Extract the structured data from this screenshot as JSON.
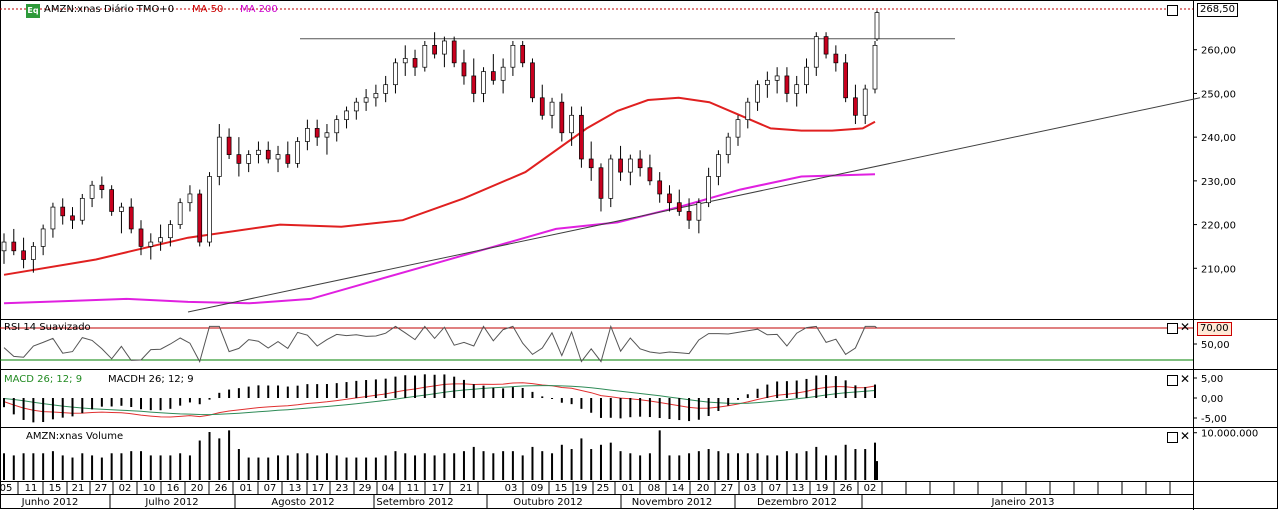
{
  "header": {
    "eq_badge": "Eq",
    "symbol_label": "AMZN:xnas Diário TMO+0",
    "ma50_label": "MA 50",
    "ma200_label": "MA 200"
  },
  "indicators": {
    "rsi_label": "RSI 14 Suavizado",
    "macd_label": "MACD 26; 12; 9",
    "macdh_label": "MACDH 26; 12; 9",
    "volume_label": "AMZN:xnas Volume"
  },
  "colors": {
    "candle_up": "#ffffff",
    "candle_down": "#c8001e",
    "ma50": "#e02020",
    "ma200": "#e020e0",
    "trendline": "#404040",
    "rsi_upper": "#c00000",
    "rsi_lower": "#008000",
    "macd": "#e03030",
    "macd_signal": "#2e8b57",
    "header_dots": "#c00000"
  },
  "chart_data": [
    {
      "type": "candlestick",
      "title": "AMZN:xnas Diário TMO+0",
      "ylim": [
        200,
        270
      ],
      "yticks": [
        "210,00",
        "220,00",
        "230,00",
        "240,00",
        "250,00",
        "260,00"
      ],
      "ytick_values": [
        210,
        220,
        230,
        240,
        250,
        260
      ],
      "last_price_label": "268,50",
      "last_price": 268.5,
      "x_day_labels": [
        "05",
        "11",
        "15",
        "21",
        "27",
        "02",
        "10",
        "16",
        "20",
        "26",
        "01",
        "07",
        "13",
        "17",
        "23",
        "29",
        "04",
        "11",
        "17",
        "21",
        "03",
        "09",
        "15",
        "19",
        "25",
        "01",
        "08",
        "14",
        "20",
        "27",
        "03",
        "07",
        "13",
        "19",
        "26",
        "02"
      ],
      "x_month_labels": [
        "Junho 2012",
        "Julho 2012",
        "Agosto 2012",
        "Setembro 2012",
        "Outubro 2012",
        "Novembro 2012",
        "Dezembro 2012",
        "Janeiro 2013"
      ],
      "ma50_points": [
        [
          0,
          208.5
        ],
        [
          15,
          212
        ],
        [
          30,
          217
        ],
        [
          45,
          220
        ],
        [
          55,
          219.5
        ],
        [
          65,
          221
        ],
        [
          75,
          226
        ],
        [
          85,
          232
        ],
        [
          95,
          242
        ],
        [
          100,
          246
        ],
        [
          105,
          248.5
        ],
        [
          110,
          249
        ],
        [
          115,
          248
        ],
        [
          120,
          245
        ],
        [
          125,
          242
        ],
        [
          130,
          241.5
        ],
        [
          135,
          241.5
        ],
        [
          140,
          242
        ],
        [
          142,
          243.5
        ]
      ],
      "ma200_points": [
        [
          0,
          202
        ],
        [
          10,
          202.5
        ],
        [
          20,
          203
        ],
        [
          30,
          202.3
        ],
        [
          40,
          202
        ],
        [
          50,
          203
        ],
        [
          60,
          207
        ],
        [
          70,
          211
        ],
        [
          80,
          215
        ],
        [
          90,
          219
        ],
        [
          100,
          220.5
        ],
        [
          110,
          224
        ],
        [
          120,
          228
        ],
        [
          130,
          231
        ],
        [
          142,
          231.5
        ]
      ],
      "horizontal_resistance": 262.5,
      "trendline": [
        [
          30,
          200
        ],
        [
          195,
          249
        ]
      ],
      "candles": [
        [
          214,
          218,
          211,
          216
        ],
        [
          216,
          219,
          213,
          214
        ],
        [
          214,
          217,
          210,
          212
        ],
        [
          212,
          216,
          209,
          215
        ],
        [
          215,
          220,
          213,
          219
        ],
        [
          219,
          225,
          217,
          224
        ],
        [
          224,
          226,
          220,
          222
        ],
        [
          222,
          224,
          219,
          221
        ],
        [
          221,
          227,
          220,
          226
        ],
        [
          226,
          230,
          224,
          229
        ],
        [
          229,
          231,
          226,
          228
        ],
        [
          228,
          229,
          222,
          223
        ],
        [
          223,
          225,
          218,
          224
        ],
        [
          224,
          226,
          218,
          219
        ],
        [
          219,
          221,
          213,
          215
        ],
        [
          215,
          218,
          212,
          216
        ],
        [
          216,
          220,
          214,
          217
        ],
        [
          217,
          221,
          215,
          220
        ],
        [
          220,
          226,
          219,
          225
        ],
        [
          225,
          229,
          223,
          227
        ],
        [
          227,
          228,
          215,
          216
        ],
        [
          216,
          232,
          215,
          231
        ],
        [
          231,
          243,
          229,
          240
        ],
        [
          240,
          242,
          235,
          236
        ],
        [
          236,
          240,
          231,
          234
        ],
        [
          234,
          237,
          232,
          236
        ],
        [
          236,
          239,
          234,
          237
        ],
        [
          237,
          239,
          234,
          235
        ],
        [
          235,
          238,
          232,
          236
        ],
        [
          236,
          239,
          233,
          234
        ],
        [
          234,
          240,
          233,
          239
        ],
        [
          239,
          244,
          237,
          242
        ],
        [
          242,
          244,
          238,
          240
        ],
        [
          240,
          243,
          236,
          241
        ],
        [
          241,
          245,
          239,
          244
        ],
        [
          244,
          247,
          242,
          246
        ],
        [
          246,
          249,
          244,
          248
        ],
        [
          248,
          251,
          246,
          249
        ],
        [
          249,
          252,
          247,
          250
        ],
        [
          250,
          254,
          248,
          252
        ],
        [
          252,
          258,
          250,
          257
        ],
        [
          257,
          261,
          254,
          258
        ],
        [
          258,
          260,
          254,
          256
        ],
        [
          256,
          262,
          255,
          261
        ],
        [
          261,
          264,
          258,
          259
        ],
        [
          259,
          263,
          256,
          262
        ],
        [
          262,
          263,
          256,
          257
        ],
        [
          257,
          260,
          252,
          254
        ],
        [
          254,
          258,
          248,
          250
        ],
        [
          250,
          256,
          248,
          255
        ],
        [
          255,
          259,
          252,
          253
        ],
        [
          253,
          258,
          250,
          256
        ],
        [
          256,
          262,
          254,
          261
        ],
        [
          261,
          262,
          256,
          257
        ],
        [
          257,
          258,
          248,
          249
        ],
        [
          249,
          252,
          244,
          245
        ],
        [
          245,
          249,
          242,
          248
        ],
        [
          248,
          250,
          239,
          241
        ],
        [
          241,
          247,
          238,
          245
        ],
        [
          245,
          247,
          233,
          235
        ],
        [
          235,
          239,
          230,
          233
        ],
        [
          233,
          234,
          223,
          226
        ],
        [
          226,
          236,
          224,
          235
        ],
        [
          235,
          238,
          230,
          232
        ],
        [
          232,
          236,
          229,
          235
        ],
        [
          235,
          237,
          231,
          233
        ],
        [
          233,
          236,
          229,
          230
        ],
        [
          230,
          232,
          225,
          227
        ],
        [
          227,
          229,
          223,
          225
        ],
        [
          225,
          228,
          222,
          223
        ],
        [
          223,
          226,
          219,
          221
        ],
        [
          221,
          226,
          218,
          225
        ],
        [
          225,
          233,
          224,
          231
        ],
        [
          231,
          237,
          229,
          236
        ],
        [
          236,
          241,
          234,
          240
        ],
        [
          240,
          245,
          238,
          244
        ],
        [
          244,
          249,
          242,
          248
        ],
        [
          248,
          253,
          246,
          252
        ],
        [
          252,
          255,
          249,
          253
        ],
        [
          253,
          256,
          250,
          254
        ],
        [
          254,
          256,
          248,
          250
        ],
        [
          250,
          254,
          247,
          252
        ],
        [
          252,
          258,
          250,
          256
        ],
        [
          256,
          264,
          254,
          263
        ],
        [
          263,
          264,
          258,
          259
        ],
        [
          259,
          261,
          255,
          257
        ],
        [
          257,
          259,
          248,
          249
        ],
        [
          249,
          252,
          243,
          245
        ],
        [
          245,
          252,
          243,
          251
        ],
        [
          251,
          262,
          250,
          261
        ]
      ]
    },
    {
      "type": "line",
      "title": "RSI 14 Suavizado",
      "ylim": [
        20,
        80
      ],
      "yticks": [
        "50,00"
      ],
      "ytick_values": [
        50
      ],
      "levels": [
        {
          "value": 70,
          "label": "70,00"
        },
        {
          "value": 30
        }
      ]
    },
    {
      "type": "line",
      "title": "MACD 26; 12; 9",
      "ylim": [
        -6,
        6
      ],
      "yticks": [
        "5,00",
        "0,00",
        "-5,00"
      ],
      "ytick_values": [
        5,
        0,
        -5
      ]
    },
    {
      "type": "bar",
      "title": "AMZN:xnas Volume",
      "ylim": [
        0,
        11000000
      ],
      "yticks": [
        "10.000.000"
      ],
      "ytick_values": [
        10000000
      ]
    }
  ]
}
